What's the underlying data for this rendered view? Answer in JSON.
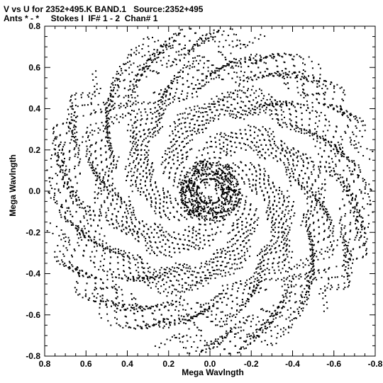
{
  "header": {
    "title_line1": "V vs U for 2352+495.K BAND.1   Source:2352+495",
    "title_line2": "Ants * - *     Stokes I  IF# 1 - 2  Chan# 1"
  },
  "chart_data": {
    "type": "scatter",
    "title": "V vs U for 2352+495.K BAND.1   Source:2352+495",
    "subtitle": "Ants * - *     Stokes I  IF# 1 - 2  Chan# 1",
    "xlabel": "Mega Wavlngth",
    "ylabel": "Mega Wavlngth",
    "xlim": [
      0.8,
      -0.8
    ],
    "ylim": [
      -0.8,
      0.8
    ],
    "x_reversed": true,
    "xticks": [
      0.8,
      0.6,
      0.4,
      0.2,
      0.0,
      -0.2,
      -0.4,
      -0.6,
      -0.8
    ],
    "xtick_labels": [
      "0.8",
      "0.6",
      "0.4",
      "0.2",
      "0.0",
      "-0.2",
      "-0.4",
      "-0.6",
      "-0.8"
    ],
    "yticks": [
      0.8,
      0.6,
      0.4,
      0.2,
      0.0,
      -0.2,
      -0.4,
      -0.6,
      -0.8
    ],
    "ytick_labels": [
      "0.8",
      "0.6",
      "0.4",
      "0.2",
      "0.0",
      "-0.2",
      "-0.4",
      "-0.6",
      "-0.8"
    ],
    "grid": false,
    "marker_color": "#000000",
    "uv_coverage": {
      "pattern": "six-armed spiral of conjugate-symmetric baseline tracks",
      "arm_angles_deg": [
        60,
        120,
        180,
        240,
        300,
        360
      ],
      "max_radius": 0.78,
      "track_count": 34
    }
  }
}
